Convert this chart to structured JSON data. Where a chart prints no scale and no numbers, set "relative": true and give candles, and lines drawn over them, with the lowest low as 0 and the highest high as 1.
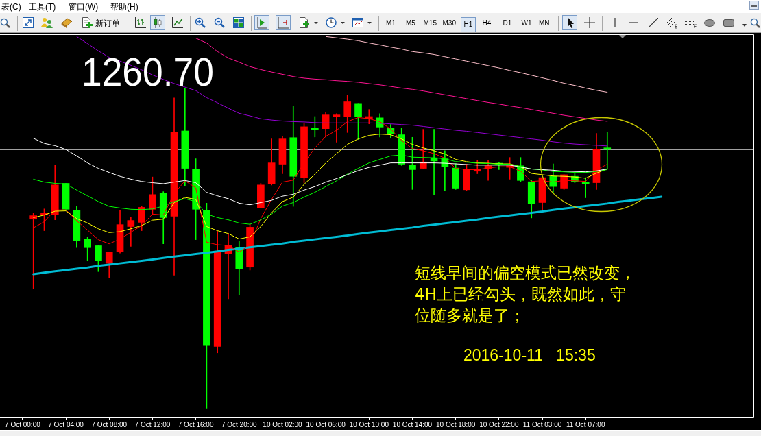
{
  "chart_data": {
    "type": "candlestick",
    "relative": true,
    "categories": [
      "7 Oct 00:00",
      null,
      null,
      null,
      "7 Oct 04:00",
      null,
      null,
      null,
      "7 Oct 08:00",
      null,
      null,
      null,
      "7 Oct 12:00",
      null,
      null,
      null,
      "7 Oct 16:00",
      null,
      null,
      null,
      "7 Oct 20:00",
      null,
      null,
      null,
      "10 Oct 02:00",
      null,
      null,
      null,
      "10 Oct 06:00",
      null,
      null,
      null,
      "10 Oct 10:00",
      null,
      null,
      null,
      "10 Oct 14:00",
      null,
      null,
      null,
      "10 Oct 18:00",
      null,
      null,
      null,
      "10 Oct 22:00",
      null,
      null,
      null,
      "11 Oct 03:00",
      null,
      null,
      null,
      "11 Oct 07:00",
      null,
      null,
      null,
      null,
      null,
      null,
      null,
      null,
      null,
      null,
      null,
      null,
      null,
      null,
      null
    ],
    "ohlc": [
      null,
      [
        0.591,
        0.611,
        0.374,
        0.602
      ],
      [
        0.605,
        0.623,
        0.555,
        0.611
      ],
      [
        0.605,
        0.76,
        0.589,
        0.698
      ],
      [
        0.703,
        0.703,
        0.622,
        0.622
      ],
      [
        0.619,
        0.632,
        0.502,
        0.524
      ],
      [
        0.529,
        0.534,
        0.461,
        0.502
      ],
      [
        0.508,
        0.508,
        0.427,
        0.461
      ],
      [
        0.453,
        0.487,
        0.407,
        0.487
      ],
      [
        0.489,
        0.619,
        0.485,
        0.574
      ],
      [
        0.568,
        0.596,
        0.506,
        0.587
      ],
      [
        0.581,
        0.632,
        0.555,
        0.628
      ],
      [
        0.622,
        0.723,
        0.605,
        0.668
      ],
      [
        0.673,
        0.677,
        0.514,
        0.596
      ],
      [
        0.6,
        0.97,
        0.416,
        0.864
      ],
      [
        0.867,
        1,
        0.696,
        0.75
      ],
      [
        0.748,
        0.78,
        0.527,
        0.622
      ],
      [
        0.619,
        0.641,
        0,
        0.198
      ],
      [
        0.193,
        0.553,
        0.173,
        0.489
      ],
      [
        0.484,
        0.546,
        0.342,
        0.509
      ],
      [
        0.504,
        0.521,
        0.355,
        0.436
      ],
      [
        0.441,
        0.576,
        0.432,
        0.566
      ],
      [
        0.626,
        0.703,
        0.626,
        0.698
      ],
      [
        0.701,
        0.842,
        0.698,
        0.767
      ],
      [
        0.763,
        0.851,
        0.733,
        0.842
      ],
      [
        0.846,
        0.944,
        0.631,
        0.725
      ],
      [
        0.72,
        0.891,
        0.705,
        0.88
      ],
      [
        0.876,
        0.912,
        0.848,
        0.87
      ],
      [
        0.874,
        0.925,
        0.848,
        0.917
      ],
      [
        0.911,
        0.921,
        0.832,
        0.917
      ],
      [
        0.911,
        0.979,
        0.862,
        0.958
      ],
      [
        0.953,
        0.953,
        0.84,
        0.911
      ],
      [
        0.905,
        0.934,
        0.889,
        0.912
      ],
      [
        0.908,
        0.921,
        0.848,
        0.879
      ],
      [
        0.876,
        0.887,
        0.844,
        0.857
      ],
      [
        0.855,
        0.876,
        0.759,
        0.763
      ],
      [
        0.76,
        0.847,
        0.684,
        0.746
      ],
      [
        0.75,
        0.872,
        0.75,
        0.77
      ],
      [
        0.783,
        0.872,
        0.666,
        0.773
      ],
      [
        0.78,
        0.805,
        0.68,
        0.754
      ],
      [
        0.751,
        0.765,
        0.684,
        0.688
      ],
      [
        0.683,
        0.763,
        0.68,
        0.748
      ],
      [
        0.741,
        0.775,
        0.733,
        0.748
      ],
      [
        0.75,
        0.775,
        0.712,
        0.758
      ],
      [
        0.766,
        0.769,
        0.746,
        0.762
      ],
      [
        0.753,
        0.784,
        0.716,
        0.758
      ],
      [
        0.758,
        0.784,
        0.708,
        0.712
      ],
      [
        0.708,
        0.712,
        0.595,
        0.639
      ],
      [
        0.643,
        0.721,
        0.614,
        0.721
      ],
      [
        0.725,
        0.764,
        0.675,
        0.693
      ],
      [
        0.688,
        0.73,
        0.684,
        0.73
      ],
      [
        0.725,
        0.735,
        0.705,
        0.708
      ],
      [
        0.706,
        0.721,
        0.658,
        0.701
      ],
      [
        0.705,
        0.859,
        0.684,
        0.809
      ],
      [
        0.814,
        0.863,
        0.75,
        0.809
      ],
      null,
      null,
      null,
      null,
      null,
      null,
      null,
      null,
      null,
      null,
      null,
      null,
      null
    ],
    "colors": [
      null,
      "#ff0000",
      "#ff0000",
      "#ff0000",
      "#00ff00",
      "#00ff00",
      "#00ff00",
      "#00ff00",
      "#ff0000",
      "#ff0000",
      "#ff0000",
      "#ff0000",
      "#ff0000",
      "#00ff00",
      "#ff0000",
      "#00ff00",
      "#00ff00",
      "#00ff00",
      "#ff0000",
      "#ff0000",
      "#00ff00",
      "#ff0000",
      "#ff0000",
      "#ff0000",
      "#ff0000",
      "#00ff00",
      "#ff0000",
      "#00ff00",
      "#ff0000",
      "#ff0000",
      "#ff0000",
      "#00ff00",
      "#ff0000",
      "#00ff00",
      "#00ff00",
      "#00ff00",
      "#00ff00",
      "#ff0000",
      "#00ff00",
      "#00ff00",
      "#00ff00",
      "#ff0000",
      "#ff0000",
      "#ff0000",
      "#00ff00",
      "#ff0000",
      "#00ff00",
      "#00ff00",
      "#ff0000",
      "#00ff00",
      "#ff0000",
      "#00ff00",
      "#00ff00",
      "#ff0000",
      "#00ff00",
      null,
      null,
      null,
      null,
      null,
      null,
      null,
      null,
      null,
      null,
      null,
      null,
      null
    ],
    "series": [
      {
        "type": "line",
        "color": "#ffc0cb",
        "values": [
          null,
          null,
          null,
          null,
          null,
          null,
          null,
          null,
          null,
          null,
          null,
          null,
          null,
          null,
          null,
          null,
          null,
          null,
          null,
          null,
          null,
          null,
          null,
          null,
          null,
          null,
          null,
          null,
          1.162,
          1.158,
          1.154,
          1.149,
          1.142,
          1.136,
          1.129,
          1.123,
          1.115,
          1.111,
          1.106,
          1.099,
          1.092,
          1.085,
          1.078,
          1.071,
          1.064,
          1.056,
          1.049,
          1.041,
          1.033,
          1.025,
          1.016,
          1.009,
          1.001,
          0.994,
          0.988,
          null,
          null,
          null,
          null,
          null,
          null,
          null,
          null,
          null,
          null,
          null,
          null,
          null
        ]
      },
      {
        "type": "line",
        "color": "#ff1493",
        "values": [
          null,
          null,
          null,
          null,
          null,
          null,
          null,
          null,
          null,
          null,
          null,
          null,
          null,
          null,
          null,
          null,
          1.157,
          1.142,
          1.115,
          1.095,
          1.082,
          1.068,
          1.059,
          1.051,
          1.044,
          1.037,
          1.032,
          1.029,
          1.027,
          1.024,
          1.022,
          1.019,
          1.015,
          1.011,
          1.006,
          1.001,
          0.997,
          0.992,
          0.986,
          0.98,
          0.974,
          0.968,
          0.962,
          0.956,
          0.951,
          0.945,
          0.94,
          0.934,
          0.928,
          0.922,
          0.916,
          0.911,
          0.906,
          0.901,
          0.897,
          null,
          null,
          null,
          null,
          null,
          null,
          null,
          null,
          null,
          null,
          null,
          null,
          null
        ]
      },
      {
        "type": "line",
        "color": "#9400d3",
        "values": [
          null,
          null,
          null,
          null,
          null,
          1.162,
          1.14,
          1.117,
          1.097,
          1.085,
          1.072,
          1.058,
          1.042,
          1.028,
          1.015,
          1.004,
          0.993,
          0.971,
          0.955,
          0.938,
          0.922,
          0.914,
          0.905,
          0.901,
          0.898,
          0.896,
          0.895,
          0.893,
          0.892,
          0.892,
          0.892,
          0.892,
          0.892,
          0.891,
          0.889,
          0.887,
          0.885,
          0.881,
          0.877,
          0.873,
          0.869,
          0.866,
          0.862,
          0.858,
          0.854,
          0.85,
          0.846,
          0.842,
          0.838,
          0.833,
          0.829,
          0.826,
          0.824,
          0.822,
          0.82,
          null,
          null,
          null,
          null,
          null,
          null,
          null,
          null,
          null,
          null,
          null,
          null,
          null
        ]
      },
      {
        "type": "line",
        "color": "#ffffff",
        "values": [
          null,
          0.844,
          0.828,
          0.821,
          0.809,
          0.789,
          0.767,
          0.75,
          0.737,
          0.725,
          0.716,
          0.709,
          0.705,
          0.702,
          0.707,
          0.712,
          0.705,
          0.675,
          0.664,
          0.655,
          0.641,
          0.636,
          0.643,
          0.65,
          0.663,
          0.669,
          0.682,
          0.693,
          0.707,
          0.718,
          0.73,
          0.743,
          0.753,
          0.76,
          0.767,
          0.767,
          0.767,
          0.767,
          0.767,
          0.766,
          0.764,
          0.762,
          0.76,
          0.76,
          0.76,
          0.76,
          0.754,
          0.748,
          0.746,
          0.744,
          0.741,
          0.74,
          0.739,
          0.742,
          0.748,
          null,
          null,
          null,
          null,
          null,
          null,
          null,
          null,
          null,
          null,
          null,
          null,
          null
        ]
      },
      {
        "type": "line",
        "color": "#00ff00",
        "values": [
          null,
          0.716,
          0.707,
          0.703,
          0.701,
          0.682,
          0.664,
          0.646,
          0.631,
          0.626,
          0.622,
          0.621,
          0.623,
          0.632,
          0.646,
          0.655,
          0.646,
          0.607,
          0.596,
          0.589,
          0.579,
          0.575,
          0.589,
          0.607,
          0.632,
          0.643,
          0.66,
          0.675,
          0.693,
          0.711,
          0.732,
          0.75,
          0.767,
          0.778,
          0.789,
          0.792,
          0.785,
          0.784,
          0.783,
          0.78,
          0.771,
          0.769,
          0.766,
          0.765,
          0.763,
          0.763,
          0.755,
          0.748,
          0.745,
          0.74,
          0.739,
          0.737,
          0.737,
          0.74,
          0.746,
          null,
          null,
          null,
          null,
          null,
          null,
          null,
          null,
          null,
          null,
          null,
          null,
          null
        ]
      },
      {
        "type": "line",
        "color": "#ffff00",
        "values": [
          null,
          0.596,
          0.604,
          0.616,
          0.617,
          0.593,
          0.579,
          0.561,
          0.549,
          0.552,
          0.561,
          0.571,
          0.588,
          0.591,
          0.643,
          0.659,
          0.653,
          0.568,
          0.555,
          0.546,
          0.529,
          0.536,
          0.568,
          0.611,
          0.646,
          0.66,
          0.7,
          0.732,
          0.767,
          0.796,
          0.825,
          0.842,
          0.853,
          0.857,
          0.855,
          0.842,
          0.825,
          0.814,
          0.805,
          0.795,
          0.778,
          0.771,
          0.767,
          0.766,
          0.764,
          0.764,
          0.755,
          0.734,
          0.73,
          0.726,
          0.725,
          0.723,
          0.719,
          0.735,
          0.748,
          null,
          null,
          null,
          null,
          null,
          null,
          null,
          null,
          null,
          null,
          null,
          null,
          null
        ]
      },
      {
        "type": "line",
        "color": "#ff0000",
        "values": [
          null,
          0.564,
          0.583,
          0.62,
          0.62,
          0.586,
          0.557,
          0.527,
          0.514,
          0.529,
          0.55,
          0.571,
          0.607,
          0.604,
          0.671,
          0.711,
          0.689,
          0.519,
          0.511,
          0.509,
          0.488,
          0.511,
          0.593,
          0.653,
          0.707,
          0.713,
          0.767,
          0.814,
          0.85,
          0.869,
          0.896,
          0.909,
          0.905,
          0.896,
          0.873,
          0.837,
          0.812,
          0.805,
          0.796,
          0.782,
          0.75,
          0.746,
          0.746,
          0.751,
          0.755,
          0.755,
          0.741,
          0.709,
          0.711,
          0.707,
          0.712,
          0.711,
          0.709,
          0.745,
          0.763,
          null,
          null,
          null,
          null,
          null,
          null,
          null,
          null,
          null,
          null,
          null,
          null,
          null
        ]
      },
      {
        "type": "line",
        "color": "#00bcd4",
        "values": [
          null,
          0.419,
          0.424,
          0.428,
          0.432,
          0.436,
          0.44,
          0.445,
          0.449,
          0.453,
          0.457,
          0.461,
          0.465,
          0.47,
          0.474,
          0.478,
          0.482,
          0.486,
          0.49,
          0.495,
          0.499,
          0.503,
          0.507,
          0.511,
          0.515,
          0.52,
          0.524,
          0.528,
          0.532,
          0.536,
          0.54,
          0.545,
          0.549,
          0.553,
          0.557,
          0.561,
          0.565,
          0.57,
          0.574,
          0.578,
          0.582,
          0.586,
          0.59,
          0.595,
          0.599,
          0.603,
          0.607,
          0.611,
          0.615,
          0.62,
          0.624,
          0.628,
          0.632,
          0.636,
          0.64,
          0.645,
          0.649,
          0.653,
          0.657,
          0.661,
          null,
          null,
          null,
          null,
          null,
          null,
          null,
          null
        ]
      }
    ],
    "ref_lines": [
      {
        "axis": "y",
        "value": 0.809,
        "color": "#a0a0a0"
      }
    ],
    "annotations": [
      "1260.70",
      "短线早间的偏空模式已然改变，",
      "4H上已经勾头，既然如此，守",
      "位随多就是了；",
      "2016-10-11   15:35",
      "表(C)",
      "工具(T)",
      "窗口(W)",
      "帮助(H)",
      "新订单",
      "M1",
      "M5",
      "M15",
      "M30",
      "H1",
      "H4",
      "D1",
      "W1",
      "MN"
    ]
  }
}
